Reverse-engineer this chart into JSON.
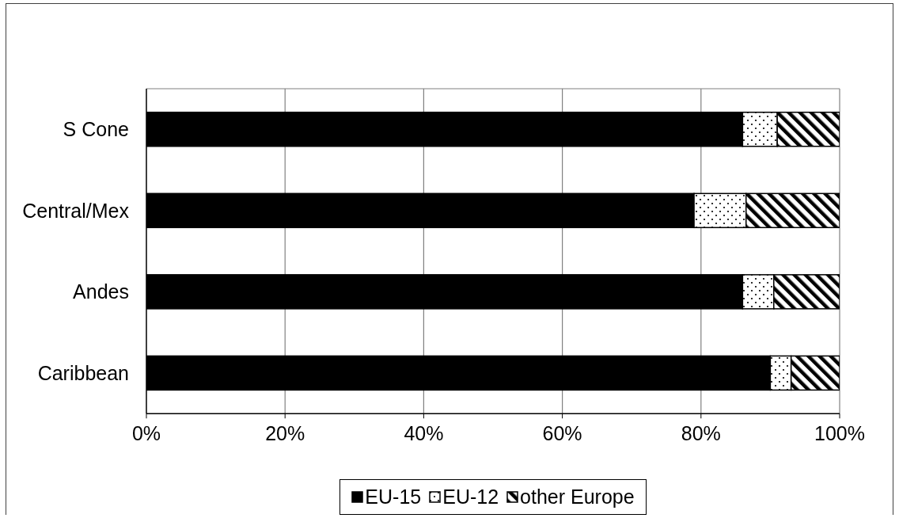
{
  "chart_data": {
    "type": "bar",
    "orientation": "horizontal",
    "stacked": true,
    "categories": [
      "S Cone",
      "Central/Mex",
      "Andes",
      "Caribbean"
    ],
    "series": [
      {
        "name": "EU-15",
        "color": "#000000",
        "values": [
          86,
          79,
          86,
          90
        ]
      },
      {
        "name": "EU-12",
        "color": "#ffffff",
        "values": [
          5,
          7.5,
          4.5,
          3
        ]
      },
      {
        "name": "other Europe",
        "color": "#ffffff",
        "values": [
          9,
          13.5,
          9.5,
          7
        ]
      }
    ],
    "xlim": [
      0,
      100
    ],
    "xticks": [
      {
        "value": 0,
        "label": "0%"
      },
      {
        "value": 20,
        "label": "20%"
      },
      {
        "value": 40,
        "label": "40%"
      },
      {
        "value": 60,
        "label": "60%"
      },
      {
        "value": 80,
        "label": "80%"
      },
      {
        "value": 100,
        "label": "100%"
      }
    ],
    "grid": "x",
    "legend": "bottom"
  }
}
